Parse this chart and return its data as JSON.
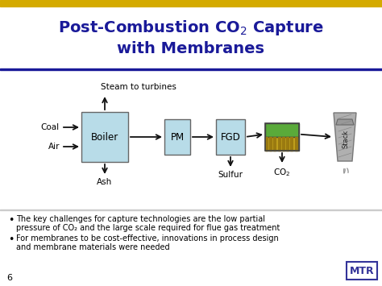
{
  "title_color": "#1a1a99",
  "title_fontsize": 14,
  "bg_color": "#ffffff",
  "header_bar_color": "#d4aa00",
  "slide_number": "6",
  "bullet1_line1": "The key challenges for capture technologies are the low partial",
  "bullet1_line2": "pressure of CO₂ and the large scale required for flue gas treatment",
  "bullet2_line1": "For membranes to be cost-effective, innovations in process design",
  "bullet2_line2": "and membrane materials were needed",
  "box_color": "#b8dce8",
  "membrane_green": "#5aaa3a",
  "stack_color": "#aaaaaa",
  "text_color": "#000000",
  "arrow_color": "#111111",
  "separator_color": "#1a1a99",
  "mtr_color": "#333399"
}
